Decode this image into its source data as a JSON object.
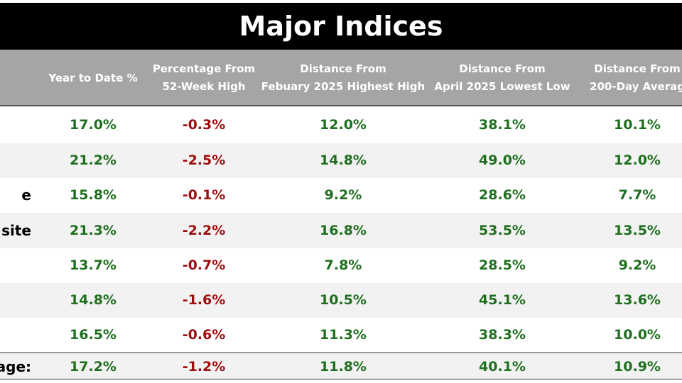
{
  "title": "Major Indices",
  "headers": [
    [
      "Year to Date %"
    ],
    [
      "Percentage From",
      "52-Week High"
    ],
    [
      "Distance From",
      "Febuary 2025 Highest High"
    ],
    [
      "Distance From",
      "April 2025 Lowest Low"
    ],
    [
      "Distance From",
      "200-Day Averag"
    ]
  ],
  "rows": [
    {
      "cells": [
        "17.0%",
        "-0.3%",
        "12.0%",
        "38.1%",
        "10.1%"
      ]
    },
    {
      "cells": [
        "21.2%",
        "-2.5%",
        "14.8%",
        "49.0%",
        "12.0%"
      ]
    },
    {
      "label": "e",
      "cells": [
        "15.8%",
        "-0.1%",
        "9.2%",
        "28.6%",
        "7.7%"
      ]
    },
    {
      "label": "site",
      "cells": [
        "21.3%",
        "-2.2%",
        "16.8%",
        "53.5%",
        "13.5%"
      ]
    },
    {
      "cells": [
        "13.7%",
        "-0.7%",
        "7.8%",
        "28.5%",
        "9.2%"
      ]
    },
    {
      "cells": [
        "14.8%",
        "-1.6%",
        "10.5%",
        "45.1%",
        "13.6%"
      ]
    },
    {
      "cells": [
        "16.5%",
        "-0.6%",
        "11.3%",
        "38.3%",
        "10.0%"
      ]
    },
    {
      "label": "age:",
      "cells": [
        "17.2%",
        "-1.2%",
        "11.8%",
        "40.1%",
        "10.9%"
      ]
    }
  ]
}
